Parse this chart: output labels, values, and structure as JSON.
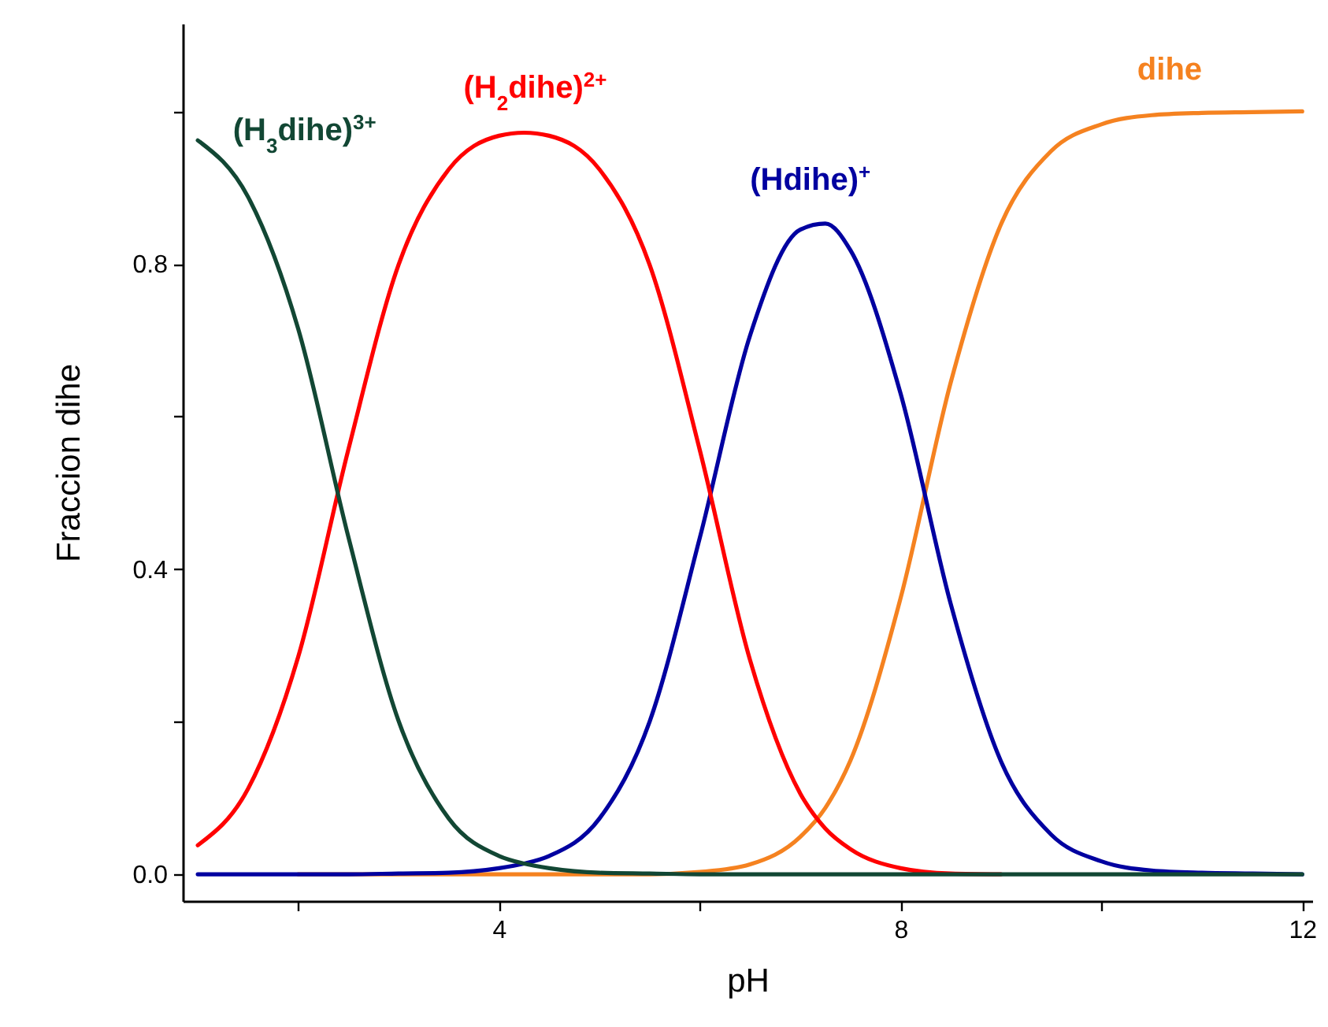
{
  "chart_data": {
    "type": "line",
    "xlabel": "pH",
    "ylabel": "Fraccion dihe",
    "x": [
      1,
      1.5,
      2,
      2.5,
      3,
      3.5,
      4,
      4.25,
      4.5,
      5,
      5.5,
      6,
      6.5,
      7,
      7.25,
      7.5,
      8,
      8.5,
      9,
      9.5,
      10,
      10.5,
      11,
      11.5,
      12
    ],
    "series": [
      {
        "name": "(H$_{3}$dihe)$^{3+}$",
        "color": "#124734",
        "values": [
          0.962,
          0.888,
          0.715,
          0.442,
          0.201,
          0.073,
          0.024,
          0.014,
          0.008,
          0.002,
          0.001,
          0,
          0,
          0,
          0,
          0,
          0,
          0,
          0,
          0,
          0,
          0,
          0,
          0,
          0
        ]
      },
      {
        "name": "(H$_{2}$dihe)$^{2+}$",
        "color": "#ff0000",
        "values": [
          0.038,
          0.112,
          0.285,
          0.557,
          0.799,
          0.924,
          0.968,
          0.972,
          0.968,
          0.924,
          0.799,
          0.556,
          0.281,
          0.106,
          0.06,
          0.033,
          0.008,
          0.001,
          0,
          null,
          null,
          null,
          null,
          null,
          null
        ]
      },
      {
        "name": "(Hdihe)$^{+}$",
        "color": "#0000a0",
        "values": [
          0,
          0,
          0,
          0,
          0.001,
          0.002,
          0.008,
          0.014,
          0.024,
          0.073,
          0.2,
          0.441,
          0.706,
          0.845,
          0.853,
          0.818,
          0.63,
          0.354,
          0.148,
          0.052,
          0.017,
          0.005,
          0.002,
          0.001,
          0
        ]
      },
      {
        "name": "dihe",
        "color": "#f58220",
        "values": [
          null,
          null,
          0,
          0,
          0,
          0,
          0,
          0,
          0,
          0,
          0,
          0.003,
          0.013,
          0.049,
          0.087,
          0.149,
          0.362,
          0.645,
          0.852,
          0.948,
          0.983,
          0.995,
          0.998,
          0.999,
          1.0
        ]
      }
    ],
    "xlim": [
      0.85,
      12.1
    ],
    "xticks": [
      {
        "value": 2,
        "label": null
      },
      4,
      {
        "value": 6,
        "label": null
      },
      8,
      {
        "value": 10,
        "label": null
      },
      12
    ],
    "ylim": [
      -0.035,
      1.115
    ],
    "yticks": [
      {
        "value": 0,
        "label": "0.0"
      },
      {
        "value": 0.2,
        "label": null
      },
      0.4,
      {
        "value": 0.6,
        "label": null
      },
      0.8,
      {
        "value": 1.0,
        "label": null
      }
    ],
    "grid": false
  }
}
